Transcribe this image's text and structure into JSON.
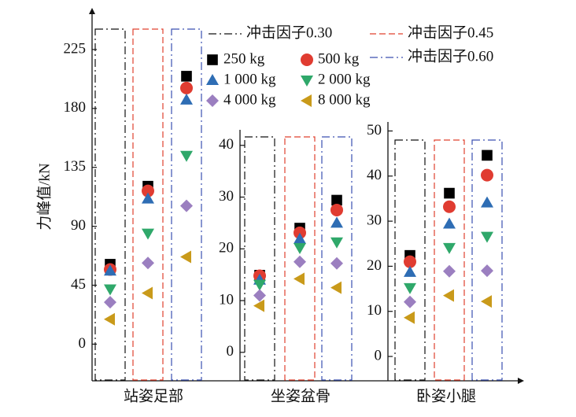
{
  "chart_data": {
    "type": "grouped-scatter",
    "y_label": "力峰值/kN",
    "frames": [
      {
        "name": "冲击因子0.30",
        "color": "#111111"
      },
      {
        "name": "冲击因子0.45",
        "color": "#e0412e"
      },
      {
        "name": "冲击因子0.60",
        "color": "#3a4fb0"
      }
    ],
    "series": [
      {
        "name": "250 kg",
        "color": "#000000",
        "marker": "square"
      },
      {
        "name": "500 kg",
        "color": "#e03c31",
        "marker": "circle"
      },
      {
        "name": "1 000 kg",
        "color": "#2e6db4",
        "marker": "triangle-up"
      },
      {
        "name": "2 000 kg",
        "color": "#2fa86a",
        "marker": "triangle-down"
      },
      {
        "name": "4 000 kg",
        "color": "#9b7fc0",
        "marker": "diamond"
      },
      {
        "name": "8 000 kg",
        "color": "#c99a1a",
        "marker": "triangle-left"
      }
    ],
    "panels": [
      {
        "category": "站姿足部",
        "ylim": [
          -28,
          252
        ],
        "yticks": [
          0,
          45,
          90,
          135,
          180,
          225
        ],
        "values": [
          [
            61,
            120.6,
            204.6
          ],
          [
            57,
            117,
            195.6
          ],
          [
            56,
            111,
            186.6
          ],
          [
            42,
            84.6,
            144
          ],
          [
            32,
            62,
            105.6
          ],
          [
            19,
            39,
            66.6
          ]
        ]
      },
      {
        "category": "坐姿盆骨",
        "ylim": [
          -5.5,
          43
        ],
        "yticks": [
          0,
          10,
          20,
          30,
          40
        ],
        "values": [
          [
            14.9,
            24,
            29.4
          ],
          [
            14.8,
            23.1,
            27.5
          ],
          [
            14,
            21.9,
            25
          ],
          [
            13.1,
            20.2,
            21.3
          ],
          [
            11,
            17.5,
            17.2
          ],
          [
            9,
            14.2,
            12.5
          ]
        ]
      },
      {
        "category": "卧姿小腿",
        "ylim": [
          -5.4,
          52
        ],
        "yticks": [
          0,
          10,
          20,
          30,
          40,
          50
        ],
        "values": [
          [
            22.4,
            36.2,
            44.6
          ],
          [
            21,
            33.2,
            40.2
          ],
          [
            18.7,
            29.4,
            34.1
          ],
          [
            15.2,
            24.1,
            26.6
          ],
          [
            12.1,
            18.9,
            19
          ],
          [
            8.6,
            13.5,
            12.2
          ]
        ]
      }
    ]
  }
}
